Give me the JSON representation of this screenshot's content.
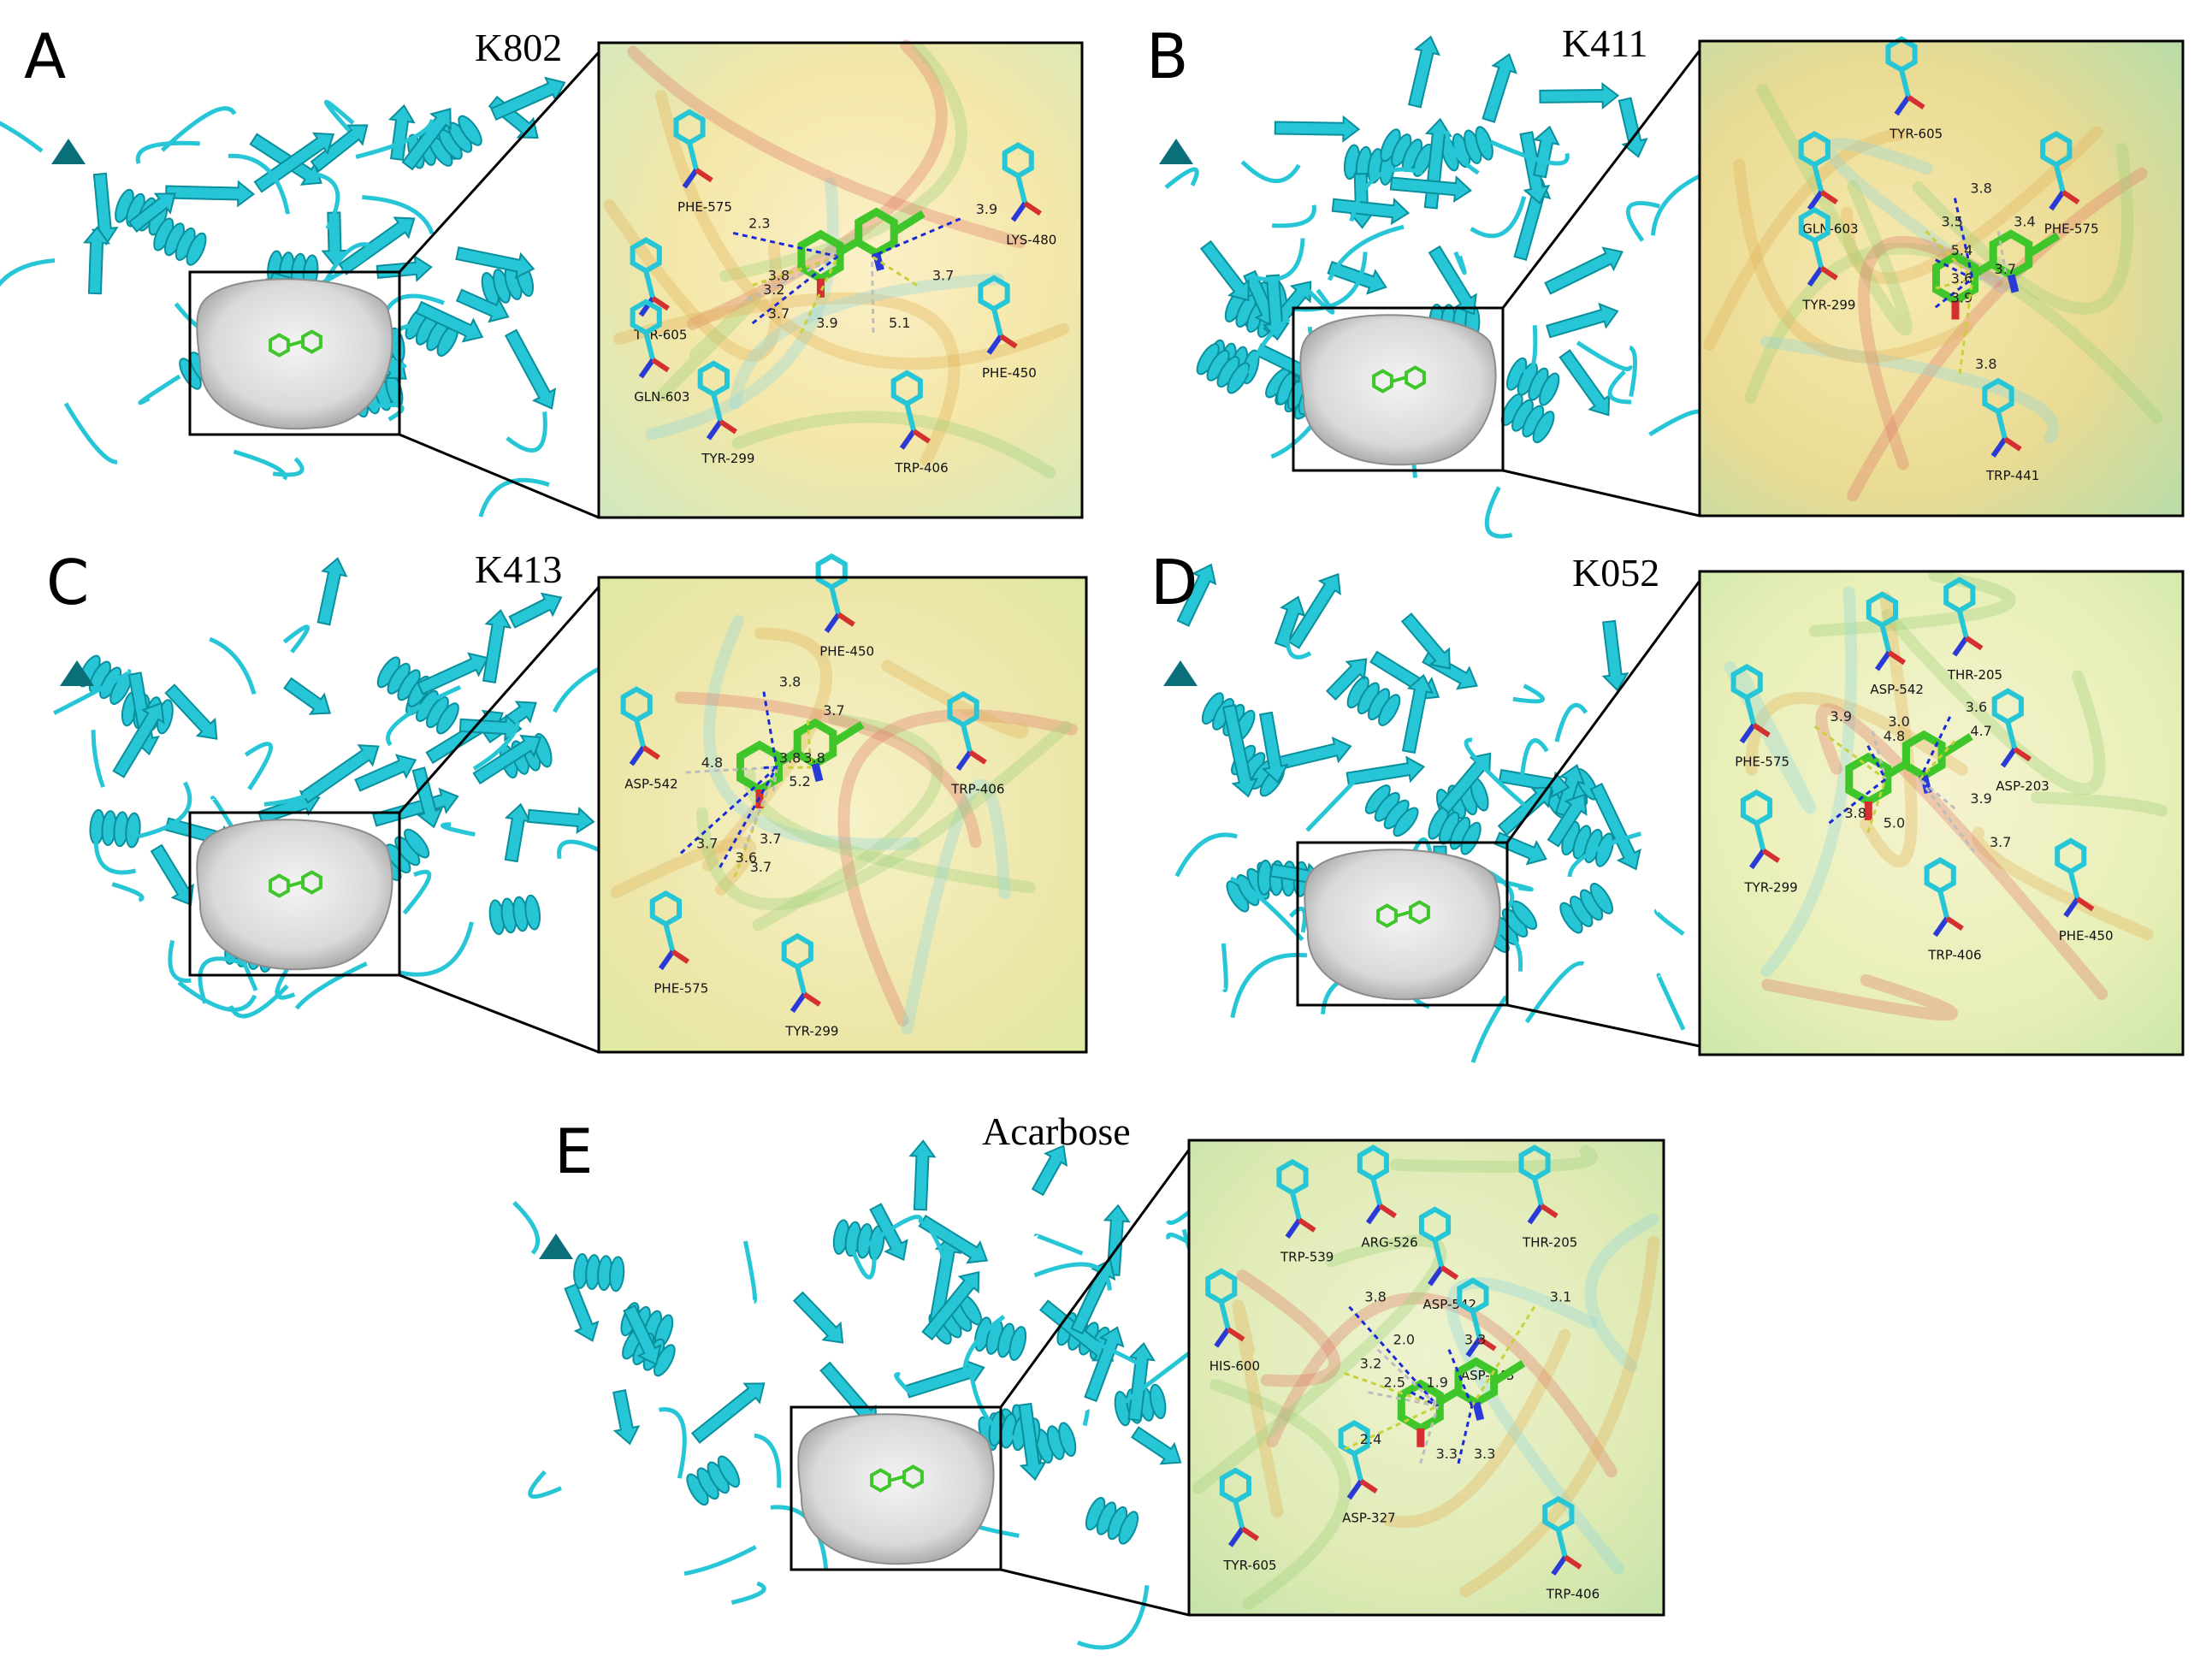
{
  "colors": {
    "protein": "#27c6d6",
    "ligand": "#3ec62a",
    "surface": "#dcdcdc",
    "hbond": "#1a2ad6",
    "hydrophobic": "#c9d13a"
  },
  "panels": [
    {
      "letter": "A",
      "compound": "K802",
      "residues": [
        "PHE-575",
        "TYR-605",
        "GLN-603",
        "TYR-299",
        "LYS-480",
        "PHE-450",
        "TRP-406"
      ],
      "distances": [
        "2.3",
        "3.8",
        "3.2",
        "3.7",
        "3.9",
        "5.1",
        "3.9",
        "3.7"
      ]
    },
    {
      "letter": "B",
      "compound": "K411",
      "residues": [
        "TYR-605",
        "GLN-603",
        "TYR-299",
        "PHE-575",
        "TRP-441"
      ],
      "distances": [
        "3.8",
        "3.5",
        "3.4",
        "5.4",
        "3.6",
        "3.7",
        "3.9",
        "3.8"
      ]
    },
    {
      "letter": "C",
      "compound": "K413",
      "residues": [
        "PHE-450",
        "ASP-542",
        "TRP-406",
        "PHE-575",
        "TYR-299"
      ],
      "distances": [
        "3.8",
        "3.7",
        "4.8",
        "3.8",
        "3.8",
        "5.2",
        "3.7",
        "3.7",
        "3.7",
        "3.6"
      ]
    },
    {
      "letter": "D",
      "compound": "K052",
      "residues": [
        "THR-205",
        "ASP-542",
        "PHE-575",
        "ASP-203",
        "TYR-299",
        "TRP-406",
        "PHE-450"
      ],
      "distances": [
        "3.6",
        "3.9",
        "3.0",
        "4.8",
        "4.7",
        "3.9",
        "3.8",
        "5.0",
        "3.7"
      ]
    },
    {
      "letter": "E",
      "compound": "Acarbose",
      "residues": [
        "TRP-539",
        "ARG-526",
        "THR-205",
        "ASP-542",
        "HIS-600",
        "ASP-443",
        "TYR-605",
        "ASP-327",
        "TRP-406"
      ],
      "distances": [
        "3.8",
        "3.1",
        "2.0",
        "3.3",
        "3.2",
        "2.5",
        "1.9",
        "2.4",
        "3.3",
        "3.3"
      ]
    }
  ]
}
